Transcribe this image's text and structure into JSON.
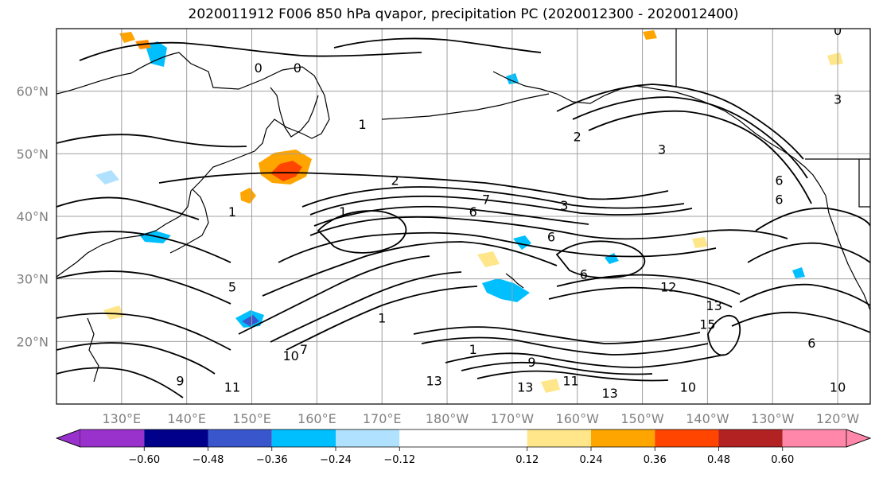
{
  "title": "2020011912 F006 850 hPa qvapor, precipitation PC (2020012300 - 2020012400)",
  "map": {
    "projection": "PlateCarree",
    "lon_range": [
      120,
      245
    ],
    "lat_range": [
      10,
      70
    ],
    "lat_ticks": [
      {
        "value": 60,
        "label": "60°N"
      },
      {
        "value": 50,
        "label": "50°N"
      },
      {
        "value": 40,
        "label": "40°N"
      },
      {
        "value": 30,
        "label": "30°N"
      },
      {
        "value": 20,
        "label": "20°N"
      }
    ],
    "lon_ticks": [
      {
        "value": 130,
        "label": "130°E"
      },
      {
        "value": 140,
        "label": "140°E"
      },
      {
        "value": 150,
        "label": "150°E"
      },
      {
        "value": 160,
        "label": "160°E"
      },
      {
        "value": 170,
        "label": "170°E"
      },
      {
        "value": 180,
        "label": "180°W"
      },
      {
        "value": 190,
        "label": "170°W"
      },
      {
        "value": 200,
        "label": "160°W"
      },
      {
        "value": 210,
        "label": "150°W"
      },
      {
        "value": 220,
        "label": "140°W"
      },
      {
        "value": 230,
        "label": "130°W"
      },
      {
        "value": 240,
        "label": "120°W"
      }
    ],
    "gridlines": true,
    "contour_labels": [
      {
        "text": "0",
        "lon": 151,
        "lat": 63
      },
      {
        "text": "0",
        "lon": 157,
        "lat": 63
      },
      {
        "text": "0",
        "lon": 240,
        "lat": 69
      },
      {
        "text": "1",
        "lon": 167,
        "lat": 54
      },
      {
        "text": "1",
        "lon": 147,
        "lat": 40
      },
      {
        "text": "1",
        "lon": 164,
        "lat": 40
      },
      {
        "text": "2",
        "lon": 172,
        "lat": 45
      },
      {
        "text": "2",
        "lon": 200,
        "lat": 52
      },
      {
        "text": "3",
        "lon": 198,
        "lat": 41
      },
      {
        "text": "3",
        "lon": 213,
        "lat": 50
      },
      {
        "text": "3",
        "lon": 240,
        "lat": 58
      },
      {
        "text": "5",
        "lon": 147,
        "lat": 28
      },
      {
        "text": "6",
        "lon": 184,
        "lat": 40
      },
      {
        "text": "6",
        "lon": 196,
        "lat": 36
      },
      {
        "text": "6",
        "lon": 231,
        "lat": 42
      },
      {
        "text": "6",
        "lon": 231,
        "lat": 45
      },
      {
        "text": "6",
        "lon": 201,
        "lat": 30
      },
      {
        "text": "6",
        "lon": 236,
        "lat": 19
      },
      {
        "text": "7",
        "lon": 186,
        "lat": 42
      },
      {
        "text": "7",
        "lon": 158,
        "lat": 18
      },
      {
        "text": "1",
        "lon": 170,
        "lat": 23
      },
      {
        "text": "12",
        "lon": 214,
        "lat": 28
      },
      {
        "text": "13",
        "lon": 221,
        "lat": 25
      },
      {
        "text": "15",
        "lon": 220,
        "lat": 22
      },
      {
        "text": "9",
        "lon": 139,
        "lat": 13
      },
      {
        "text": "9",
        "lon": 193,
        "lat": 16
      },
      {
        "text": "10",
        "lon": 156,
        "lat": 17
      },
      {
        "text": "11",
        "lon": 147,
        "lat": 12
      },
      {
        "text": "11",
        "lon": 199,
        "lat": 13
      },
      {
        "text": "13",
        "lon": 178,
        "lat": 13
      },
      {
        "text": "13",
        "lon": 192,
        "lat": 12
      },
      {
        "text": "13",
        "lon": 205,
        "lat": 11
      },
      {
        "text": "10",
        "lon": 217,
        "lat": 12
      },
      {
        "text": "10",
        "lon": 240,
        "lat": 12
      },
      {
        "text": "1",
        "lon": 184,
        "lat": 18
      }
    ]
  },
  "colorbar": {
    "extend": "both",
    "bounds": [
      -0.72,
      -0.6,
      -0.48,
      -0.36,
      -0.24,
      -0.12,
      0.12,
      0.24,
      0.36,
      0.48,
      0.6,
      0.72
    ],
    "colors": [
      "#9932cc",
      "#00008b",
      "#3a56cc",
      "#00bfff",
      "#b0e2ff",
      "#ffffff",
      "#ffe68a",
      "#ffa500",
      "#ff4500",
      "#b22222",
      "#ff88aa"
    ],
    "tick_labels": [
      "−0.60",
      "−0.48",
      "−0.36",
      "−0.24",
      "−0.12",
      "0.12",
      "0.24",
      "0.36",
      "0.48",
      "0.60"
    ]
  }
}
